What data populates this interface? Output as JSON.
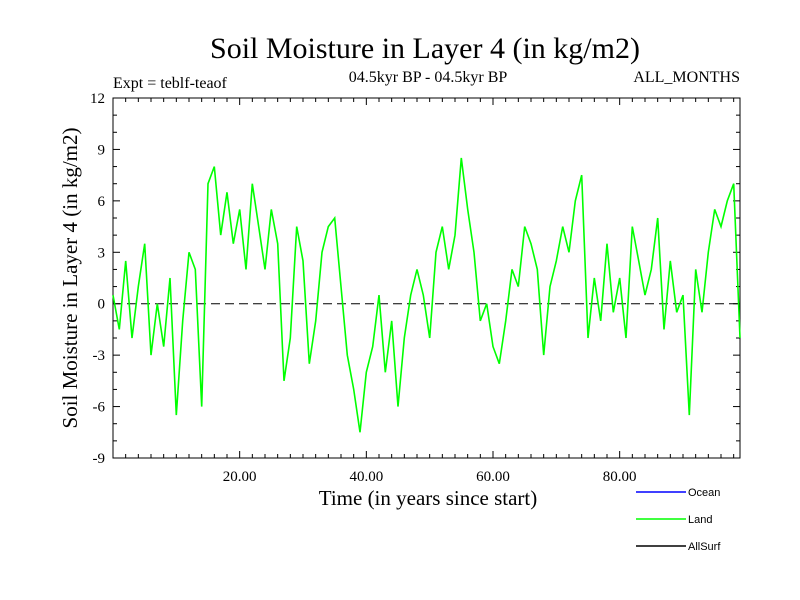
{
  "chart_data": {
    "type": "line",
    "title": "Soil Moisture in Layer 4 (in kg/m2)",
    "subtitle_left": "Expt = teblf-teaof",
    "subtitle_center": "04.5kyr BP - 04.5kyr BP",
    "subtitle_right": "ALL_MONTHS",
    "xlabel": "Time (in years since start)",
    "ylabel": "Soil Moisture in Layer 4 (in kg/m2)",
    "xlim": [
      0,
      99
    ],
    "ylim": [
      -9,
      12
    ],
    "xticks": [
      20,
      40,
      60,
      80
    ],
    "xtick_labels": [
      "20.00",
      "40.00",
      "60.00",
      "80.00"
    ],
    "yticks": [
      -9,
      -6,
      -3,
      0,
      3,
      6,
      9,
      12
    ],
    "ytick_labels": [
      "-9",
      "-6",
      "-3",
      "0",
      "3",
      "6",
      "9",
      "12"
    ],
    "reference_line": {
      "y": 0,
      "style": "dashed"
    },
    "legend_position": "bottom-right",
    "series": [
      {
        "name": "Ocean",
        "color": "#0000ff",
        "x": [],
        "values": []
      },
      {
        "name": "Land",
        "color": "#00ff00",
        "x": [
          0,
          1,
          2,
          3,
          4,
          5,
          6,
          7,
          8,
          9,
          10,
          11,
          12,
          13,
          14,
          15,
          16,
          17,
          18,
          19,
          20,
          21,
          22,
          23,
          24,
          25,
          26,
          27,
          28,
          29,
          30,
          31,
          32,
          33,
          34,
          35,
          36,
          37,
          38,
          39,
          40,
          41,
          42,
          43,
          44,
          45,
          46,
          47,
          48,
          49,
          50,
          51,
          52,
          53,
          54,
          55,
          56,
          57,
          58,
          59,
          60,
          61,
          62,
          63,
          64,
          65,
          66,
          67,
          68,
          69,
          70,
          71,
          72,
          73,
          74,
          75,
          76,
          77,
          78,
          79,
          80,
          81,
          82,
          83,
          84,
          85,
          86,
          87,
          88,
          89,
          90,
          91,
          92,
          93,
          94,
          95,
          96,
          97,
          98,
          99
        ],
        "values": [
          0.5,
          -1.5,
          2.5,
          -2.0,
          1.0,
          3.5,
          -3.0,
          0.0,
          -2.5,
          1.5,
          -6.5,
          -1.0,
          3.0,
          2.0,
          -6.0,
          7.0,
          8.0,
          4.0,
          6.5,
          3.5,
          5.5,
          2.0,
          7.0,
          4.5,
          2.0,
          5.5,
          3.5,
          -4.5,
          -2.0,
          4.5,
          2.5,
          -3.5,
          -1.0,
          3.0,
          4.5,
          5.0,
          1.0,
          -3.0,
          -5.0,
          -7.5,
          -4.0,
          -2.5,
          0.5,
          -4.0,
          -1.0,
          -6.0,
          -2.0,
          0.5,
          2.0,
          0.5,
          -2.0,
          3.0,
          4.5,
          2.0,
          4.0,
          8.5,
          5.5,
          3.0,
          -1.0,
          0.0,
          -2.5,
          -3.5,
          -1.0,
          2.0,
          1.0,
          4.5,
          3.5,
          2.0,
          -3.0,
          1.0,
          2.5,
          4.5,
          3.0,
          6.0,
          7.5,
          -2.0,
          1.5,
          -1.0,
          3.5,
          -0.5,
          1.5,
          -2.0,
          4.5,
          2.5,
          0.5,
          2.0,
          5.0,
          -1.5,
          2.5,
          -0.5,
          0.5,
          -6.5,
          2.0,
          -0.5,
          3.0,
          5.5,
          4.5,
          6.0,
          7.0,
          -2.0
        ]
      },
      {
        "name": "AllSurf",
        "color": "#000000",
        "x": [],
        "values": []
      }
    ]
  }
}
